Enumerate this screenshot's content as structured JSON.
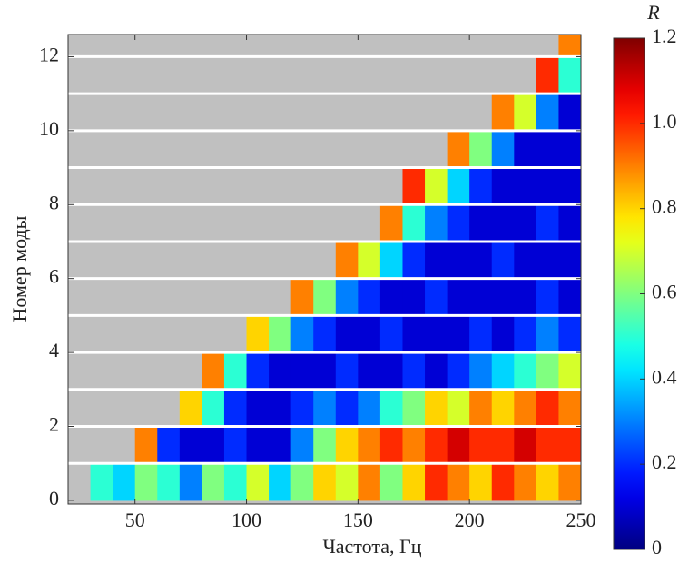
{
  "chart_data": {
    "type": "heatmap",
    "xlabel": "Частота, Гц",
    "ylabel": "Номер моды",
    "colorbar_label": "R",
    "xlim": [
      20,
      250
    ],
    "ylim": [
      -0.1,
      12.6
    ],
    "xticks": [
      50,
      100,
      150,
      200,
      250
    ],
    "yticks": [
      0,
      2,
      4,
      6,
      8,
      10,
      12
    ],
    "clim": [
      0,
      1.2
    ],
    "cticks": [
      0,
      0.2,
      0.4,
      0.6,
      0.8,
      {
        "value": 1.0,
        "label": "1.0"
      },
      1.2
    ],
    "colormap": "jet",
    "background": "#c0c0c0",
    "x_edges": [
      20,
      30,
      40,
      50,
      60,
      70,
      80,
      90,
      100,
      110,
      120,
      130,
      140,
      150,
      160,
      170,
      180,
      190,
      200,
      210,
      220,
      230,
      240,
      250
    ],
    "y_edges": [
      0,
      1,
      2,
      3,
      4,
      5,
      6,
      7,
      8,
      9,
      10,
      11,
      12,
      12.6
    ],
    "z": [
      [
        null,
        0.5,
        0.4,
        0.6,
        0.5,
        0.3,
        0.6,
        0.5,
        0.7,
        0.4,
        0.6,
        0.8,
        0.7,
        0.9,
        0.6,
        0.8,
        1.0,
        0.9,
        0.8,
        1.0,
        0.9,
        0.8,
        0.9
      ],
      [
        null,
        null,
        null,
        0.9,
        0.2,
        0.1,
        0.1,
        0.2,
        0.1,
        0.1,
        0.3,
        0.6,
        0.8,
        0.9,
        1.0,
        0.9,
        1.0,
        1.1,
        1.0,
        1.0,
        1.1,
        1.0,
        1.0
      ],
      [
        null,
        null,
        null,
        null,
        null,
        0.8,
        0.5,
        0.2,
        0.1,
        0.1,
        0.2,
        0.3,
        0.2,
        0.3,
        0.5,
        0.6,
        0.8,
        0.7,
        0.9,
        0.8,
        0.9,
        1.0,
        0.9
      ],
      [
        null,
        null,
        null,
        null,
        null,
        null,
        0.9,
        0.5,
        0.2,
        0.1,
        0.1,
        0.1,
        0.2,
        0.1,
        0.1,
        0.2,
        0.1,
        0.2,
        0.3,
        0.4,
        0.5,
        0.6,
        0.7
      ],
      [
        null,
        null,
        null,
        null,
        null,
        null,
        null,
        null,
        0.8,
        0.6,
        0.3,
        0.2,
        0.1,
        0.1,
        0.2,
        0.1,
        0.1,
        0.1,
        0.2,
        0.1,
        0.2,
        0.3,
        0.2
      ],
      [
        null,
        null,
        null,
        null,
        null,
        null,
        null,
        null,
        null,
        null,
        0.9,
        0.6,
        0.3,
        0.2,
        0.1,
        0.1,
        0.2,
        0.1,
        0.1,
        0.1,
        0.1,
        0.2,
        0.1
      ],
      [
        null,
        null,
        null,
        null,
        null,
        null,
        null,
        null,
        null,
        null,
        null,
        null,
        0.9,
        0.7,
        0.4,
        0.2,
        0.1,
        0.1,
        0.1,
        0.2,
        0.1,
        0.1,
        0.1
      ],
      [
        null,
        null,
        null,
        null,
        null,
        null,
        null,
        null,
        null,
        null,
        null,
        null,
        null,
        null,
        0.9,
        0.5,
        0.3,
        0.2,
        0.1,
        0.1,
        0.1,
        0.2,
        0.1
      ],
      [
        null,
        null,
        null,
        null,
        null,
        null,
        null,
        null,
        null,
        null,
        null,
        null,
        null,
        null,
        null,
        1.0,
        0.7,
        0.4,
        0.2,
        0.1,
        0.1,
        0.1,
        0.1
      ],
      [
        null,
        null,
        null,
        null,
        null,
        null,
        null,
        null,
        null,
        null,
        null,
        null,
        null,
        null,
        null,
        null,
        null,
        0.9,
        0.6,
        0.3,
        0.1,
        0.1,
        0.1
      ],
      [
        null,
        null,
        null,
        null,
        null,
        null,
        null,
        null,
        null,
        null,
        null,
        null,
        null,
        null,
        null,
        null,
        null,
        null,
        null,
        0.9,
        0.7,
        0.3,
        0.1
      ],
      [
        null,
        null,
        null,
        null,
        null,
        null,
        null,
        null,
        null,
        null,
        null,
        null,
        null,
        null,
        null,
        null,
        null,
        null,
        null,
        null,
        null,
        1.0,
        0.5
      ],
      [
        null,
        null,
        null,
        null,
        null,
        null,
        null,
        null,
        null,
        null,
        null,
        null,
        null,
        null,
        null,
        null,
        null,
        null,
        null,
        null,
        null,
        null,
        0.9
      ]
    ]
  }
}
